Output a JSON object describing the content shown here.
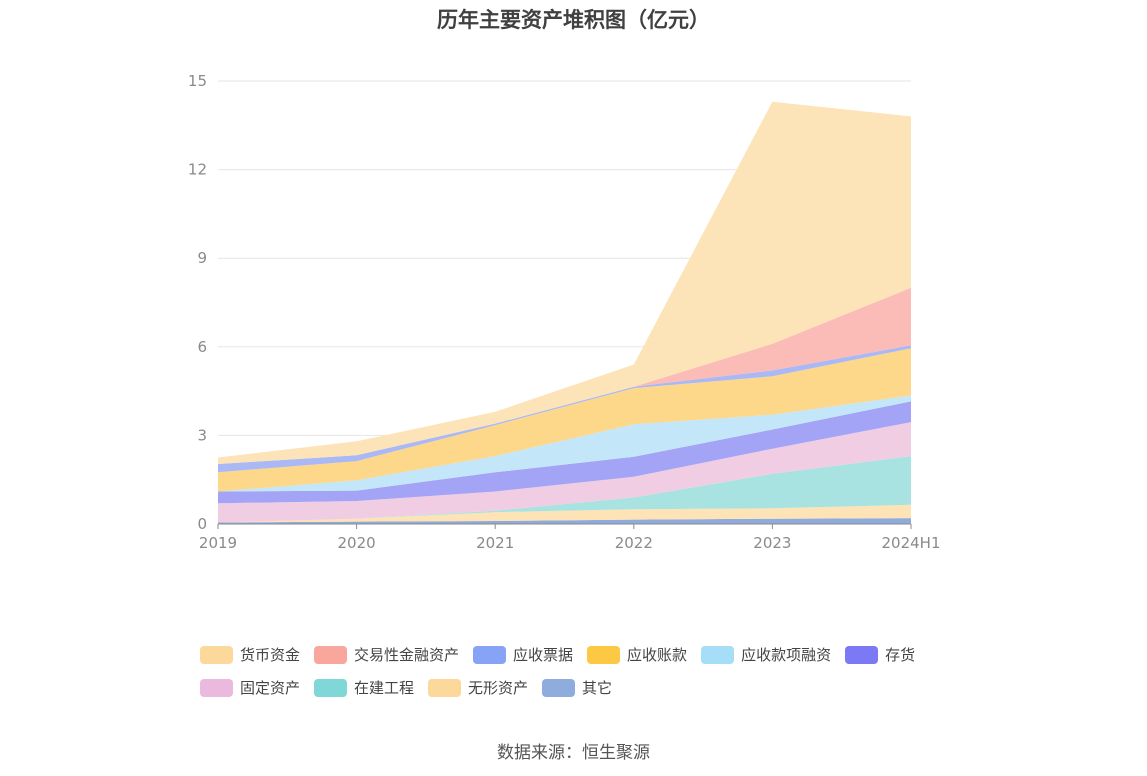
{
  "chart_data": {
    "type": "area",
    "title": "历年主要资产堆积图（亿元）",
    "stacked": true,
    "categories": [
      "2019",
      "2020",
      "2021",
      "2022",
      "2023",
      "2024H1"
    ],
    "ylim": [
      0,
      15
    ],
    "yticks": [
      0,
      3,
      6,
      9,
      12,
      15
    ],
    "grid": true,
    "legend_position": "bottom",
    "series": [
      {
        "name": "其它",
        "color": "#8faadc",
        "values": [
          0.05,
          0.08,
          0.1,
          0.15,
          0.18,
          0.2
        ]
      },
      {
        "name": "无形资产",
        "color": "#fde3b5",
        "values": [
          0.0,
          0.1,
          0.3,
          0.35,
          0.35,
          0.45
        ]
      },
      {
        "name": "在建工程",
        "color": "#a9e3e1",
        "values": [
          0.0,
          0.0,
          0.05,
          0.4,
          1.17,
          1.65
        ]
      },
      {
        "name": "固定资产",
        "color": "#f0cde3",
        "values": [
          0.65,
          0.6,
          0.65,
          0.7,
          0.85,
          1.15
        ]
      },
      {
        "name": "存货",
        "color": "#a4a4f6",
        "values": [
          0.4,
          0.35,
          0.65,
          0.68,
          0.65,
          0.7
        ]
      },
      {
        "name": "应收款项融资",
        "color": "#c3e6f9",
        "values": [
          0.0,
          0.35,
          0.55,
          1.1,
          0.5,
          0.2
        ]
      },
      {
        "name": "应收账款",
        "color": "#fdd78a",
        "values": [
          0.65,
          0.65,
          1.05,
          1.22,
          1.3,
          1.6
        ]
      },
      {
        "name": "应收票据",
        "color": "#aab8f5",
        "values": [
          0.28,
          0.2,
          0.05,
          0.05,
          0.2,
          0.1
        ]
      },
      {
        "name": "交易性金融资产",
        "color": "#fbbcb8",
        "values": [
          0.0,
          0.0,
          0.0,
          0.0,
          0.9,
          1.95
        ]
      },
      {
        "name": "货币资金",
        "color": "#fde4b8",
        "values": [
          0.22,
          0.47,
          0.4,
          0.75,
          8.2,
          5.8
        ]
      }
    ],
    "legend": [
      {
        "name": "货币资金",
        "color": "#fcd99a"
      },
      {
        "name": "交易性金融资产",
        "color": "#f9a69d"
      },
      {
        "name": "应收票据",
        "color": "#86a3f6"
      },
      {
        "name": "应收账款",
        "color": "#fdc843"
      },
      {
        "name": "应收款项融资",
        "color": "#a6def8"
      },
      {
        "name": "存货",
        "color": "#7b79f3"
      },
      {
        "name": "固定资产",
        "color": "#ebb9de"
      },
      {
        "name": "在建工程",
        "color": "#80d7d8"
      },
      {
        "name": "无形资产",
        "color": "#fcd99a"
      },
      {
        "name": "其它",
        "color": "#8eaddd"
      }
    ]
  },
  "source": "数据来源：恒生聚源"
}
